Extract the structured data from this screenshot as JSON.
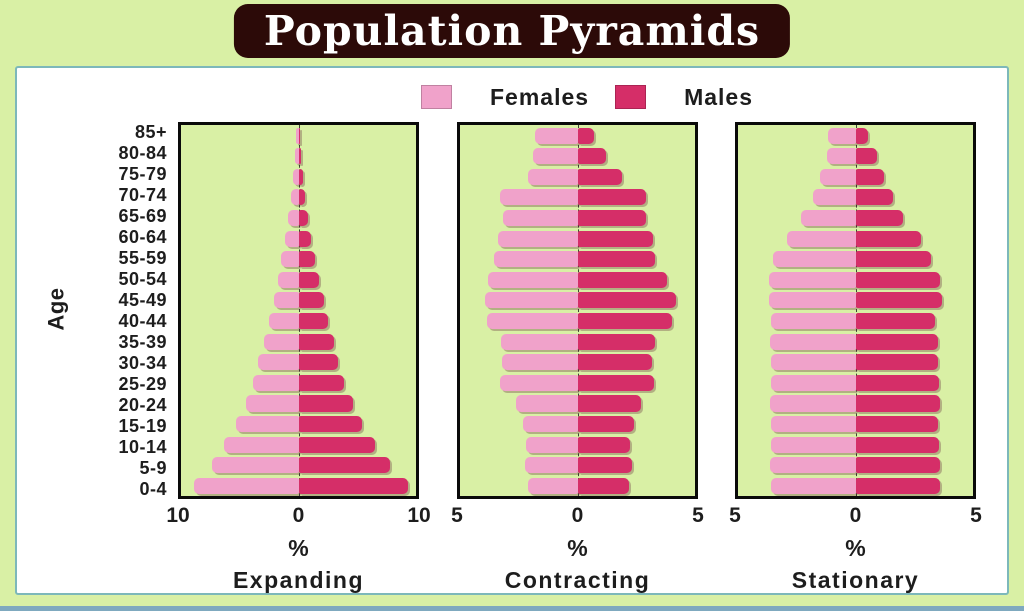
{
  "title": "Population Pyramids",
  "legend": {
    "female_label": "Females",
    "male_label": "Males"
  },
  "y_axis_label": "Age",
  "age_groups": [
    "85+",
    "80-84",
    "75-79",
    "70-74",
    "65-69",
    "60-64",
    "55-59",
    "50-54",
    "45-49",
    "40-44",
    "35-39",
    "30-34",
    "25-29",
    "20-24",
    "15-19",
    "10-14",
    "5-9",
    "0-4"
  ],
  "colors": {
    "female": "#f0a2ca",
    "male": "#d52e68",
    "page_bg": "#d9f0a5",
    "panel_bg": "#d9f0a5",
    "card_bg": "#ffffff",
    "card_border": "#7db8ba",
    "title_bg": "#2c0a08",
    "title_text": "#ffffff"
  },
  "chart_data": [
    {
      "type": "bar",
      "subtype": "population-pyramid",
      "title": "Expanding",
      "xlabel": "%",
      "xmax": 10,
      "x_ticks": [
        "10",
        "0",
        "10"
      ],
      "categories": [
        "85+",
        "80-84",
        "75-79",
        "70-74",
        "65-69",
        "60-64",
        "55-59",
        "50-54",
        "45-49",
        "40-44",
        "35-39",
        "30-34",
        "25-29",
        "20-24",
        "15-19",
        "10-14",
        "5-9",
        "0-4"
      ],
      "series": [
        {
          "name": "Females",
          "side": "left",
          "values": [
            0.2,
            0.3,
            0.45,
            0.6,
            0.9,
            1.15,
            1.45,
            1.75,
            2.1,
            2.5,
            2.95,
            3.45,
            3.9,
            4.5,
            5.3,
            6.3,
            7.4,
            8.9
          ]
        },
        {
          "name": "Males",
          "side": "right",
          "values": [
            0.1,
            0.25,
            0.4,
            0.55,
            0.85,
            1.1,
            1.4,
            1.75,
            2.15,
            2.55,
            3.0,
            3.4,
            3.85,
            4.6,
            5.4,
            6.5,
            7.8,
            9.3
          ]
        }
      ]
    },
    {
      "type": "bar",
      "subtype": "population-pyramid",
      "title": "Contracting",
      "xlabel": "%",
      "xmax": 5,
      "x_ticks": [
        "5",
        "0",
        "5"
      ],
      "categories": [
        "85+",
        "80-84",
        "75-79",
        "70-74",
        "65-69",
        "60-64",
        "55-59",
        "50-54",
        "45-49",
        "40-44",
        "35-39",
        "30-34",
        "25-29",
        "20-24",
        "15-19",
        "10-14",
        "5-9",
        "0-4"
      ],
      "series": [
        {
          "name": "Females",
          "side": "left",
          "values": [
            1.8,
            1.9,
            2.1,
            3.3,
            3.15,
            3.4,
            3.55,
            3.8,
            3.95,
            3.85,
            3.25,
            3.2,
            3.3,
            2.6,
            2.3,
            2.2,
            2.25,
            2.1
          ]
        },
        {
          "name": "Males",
          "side": "right",
          "values": [
            0.7,
            1.2,
            1.9,
            2.9,
            2.9,
            3.2,
            3.3,
            3.8,
            4.2,
            4.0,
            3.3,
            3.15,
            3.25,
            2.7,
            2.4,
            2.25,
            2.3,
            2.2
          ]
        }
      ]
    },
    {
      "type": "bar",
      "subtype": "population-pyramid",
      "title": "Stationary",
      "xlabel": "%",
      "xmax": 5,
      "x_ticks": [
        "5",
        "0",
        "5"
      ],
      "categories": [
        "85+",
        "80-84",
        "75-79",
        "70-74",
        "65-69",
        "60-64",
        "55-59",
        "50-54",
        "45-49",
        "40-44",
        "35-39",
        "30-34",
        "25-29",
        "20-24",
        "15-19",
        "10-14",
        "5-9",
        "0-4"
      ],
      "series": [
        {
          "name": "Females",
          "side": "left",
          "values": [
            1.15,
            1.2,
            1.5,
            1.8,
            2.3,
            2.9,
            3.5,
            3.7,
            3.7,
            3.6,
            3.65,
            3.6,
            3.6,
            3.65,
            3.6,
            3.6,
            3.65,
            3.6
          ]
        },
        {
          "name": "Males",
          "side": "right",
          "values": [
            0.55,
            0.9,
            1.2,
            1.6,
            2.0,
            2.8,
            3.2,
            3.6,
            3.7,
            3.4,
            3.5,
            3.5,
            3.55,
            3.6,
            3.5,
            3.55,
            3.6,
            3.6
          ]
        }
      ]
    }
  ]
}
